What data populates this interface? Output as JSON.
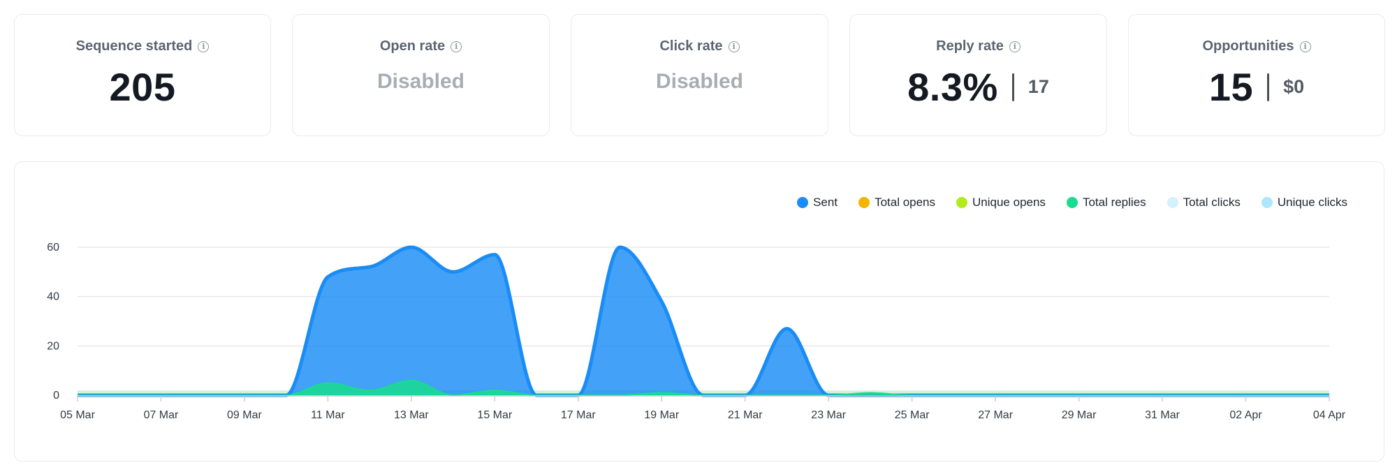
{
  "metrics": [
    {
      "title": "Sequence started",
      "value": "205",
      "sub": "",
      "disabled": false
    },
    {
      "title": "Open rate",
      "value": "Disabled",
      "sub": "",
      "disabled": true
    },
    {
      "title": "Click rate",
      "value": "Disabled",
      "sub": "",
      "disabled": true
    },
    {
      "title": "Reply rate",
      "value": "8.3%",
      "sub": "17",
      "disabled": false
    },
    {
      "title": "Opportunities",
      "value": "15",
      "sub": "$0",
      "disabled": false
    }
  ],
  "info_icon_glyph": "i",
  "chart_data": {
    "type": "area",
    "title": "",
    "xlabel": "",
    "ylabel": "",
    "ylim": [
      0,
      60
    ],
    "yticks": [
      0,
      20,
      40,
      60
    ],
    "grid": true,
    "legend_position": "top-right",
    "x_tick_labels": [
      "05 Mar",
      "07 Mar",
      "09 Mar",
      "11 Mar",
      "13 Mar",
      "15 Mar",
      "17 Mar",
      "19 Mar",
      "21 Mar",
      "23 Mar",
      "25 Mar",
      "27 Mar",
      "29 Mar",
      "31 Mar",
      "02 Apr",
      "04 Apr"
    ],
    "x": [
      "05 Mar",
      "06 Mar",
      "07 Mar",
      "08 Mar",
      "09 Mar",
      "10 Mar",
      "11 Mar",
      "12 Mar",
      "13 Mar",
      "14 Mar",
      "15 Mar",
      "16 Mar",
      "17 Mar",
      "18 Mar",
      "19 Mar",
      "20 Mar",
      "21 Mar",
      "22 Mar",
      "23 Mar",
      "24 Mar",
      "25 Mar",
      "26 Mar",
      "27 Mar",
      "28 Mar",
      "29 Mar",
      "30 Mar",
      "31 Mar",
      "01 Apr",
      "02 Apr",
      "03 Apr",
      "04 Apr"
    ],
    "series": [
      {
        "name": "Sent",
        "color": "#1a8cf5",
        "values": [
          0,
          0,
          0,
          0,
          0,
          0,
          48,
          52,
          60,
          50,
          57,
          0,
          0,
          60,
          38,
          0,
          0,
          27,
          0,
          0,
          0,
          0,
          0,
          0,
          0,
          0,
          0,
          0,
          0,
          0,
          0
        ]
      },
      {
        "name": "Total opens",
        "color": "#f5b400",
        "values": [
          0,
          0,
          0,
          0,
          0,
          0,
          0,
          0,
          0,
          0,
          0,
          0,
          0,
          0,
          0,
          0,
          0,
          0,
          0,
          0,
          0,
          0,
          0,
          0,
          0,
          0,
          0,
          0,
          0,
          0,
          0
        ]
      },
      {
        "name": "Unique opens",
        "color": "#b2ea1a",
        "values": [
          0,
          0,
          0,
          0,
          0,
          0,
          0,
          0,
          0,
          0,
          0,
          0,
          0,
          0,
          0,
          0,
          0,
          0,
          0,
          0,
          0,
          0,
          0,
          0,
          0,
          0,
          0,
          0,
          0,
          0,
          0
        ]
      },
      {
        "name": "Total replies",
        "color": "#18dc8f",
        "values": [
          0,
          0,
          0,
          0,
          0,
          0,
          5,
          2,
          6,
          0,
          2,
          0,
          0,
          0,
          1,
          0,
          0,
          0,
          0,
          1,
          0,
          0,
          0,
          0,
          0,
          0,
          0,
          0,
          0,
          0,
          0
        ]
      },
      {
        "name": "Total clicks",
        "color": "#d4f1fd",
        "values": [
          0,
          0,
          0,
          0,
          0,
          0,
          0,
          0,
          0,
          0,
          0,
          0,
          0,
          0,
          0,
          0,
          0,
          0,
          0,
          0,
          0,
          0,
          0,
          0,
          0,
          0,
          0,
          0,
          0,
          0,
          0
        ]
      },
      {
        "name": "Unique clicks",
        "color": "#aee7fb",
        "values": [
          0,
          0,
          0,
          0,
          0,
          0,
          0,
          0,
          0,
          0,
          0,
          0,
          0,
          0,
          0,
          0,
          0,
          0,
          0,
          0,
          0,
          0,
          0,
          0,
          0,
          0,
          0,
          0,
          0,
          0,
          0
        ]
      }
    ]
  }
}
